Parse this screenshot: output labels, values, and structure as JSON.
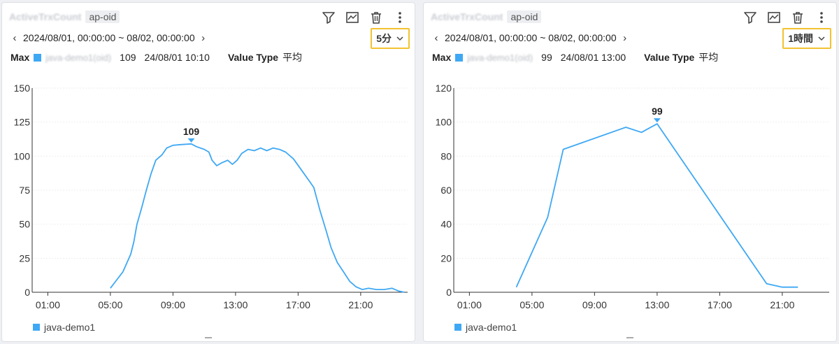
{
  "panels": [
    {
      "title": "ActiveTrxCount",
      "chip": "ap-oid",
      "range": "2024/08/01, 00:00:00 ~ 08/02, 00:00:00",
      "interval": "5分",
      "max_label": "Max",
      "series_name_blurred": "java-demo1(oid)",
      "max_value": "109",
      "max_time": "24/08/01 10:10",
      "value_type_label": "Value Type",
      "value_type": "平均",
      "legend": "java-demo1",
      "chart_data": {
        "type": "line",
        "x_ticks": [
          "01:00",
          "05:00",
          "09:00",
          "13:00",
          "17:00",
          "21:00"
        ],
        "y_ticks": [
          "0",
          "25",
          "50",
          "75",
          "100",
          "125",
          "150"
        ],
        "ylim": [
          0,
          150
        ],
        "xlim_hours": [
          0,
          24
        ],
        "peak_label": "109",
        "peak": [
          10.17,
          109
        ],
        "series": [
          {
            "name": "java-demo1",
            "points": [
              [
                5.0,
                3
              ],
              [
                5.4,
                9
              ],
              [
                5.8,
                15
              ],
              [
                6.3,
                28
              ],
              [
                6.5,
                37
              ],
              [
                6.7,
                50
              ],
              [
                7.0,
                62
              ],
              [
                7.3,
                75
              ],
              [
                7.6,
                87
              ],
              [
                7.9,
                97
              ],
              [
                8.3,
                101
              ],
              [
                8.6,
                106
              ],
              [
                9.0,
                108
              ],
              [
                9.5,
                108.5
              ],
              [
                10.17,
                109
              ],
              [
                10.5,
                107
              ],
              [
                11.0,
                105
              ],
              [
                11.3,
                103
              ],
              [
                11.5,
                97
              ],
              [
                11.8,
                93
              ],
              [
                12.1,
                95
              ],
              [
                12.5,
                97
              ],
              [
                12.8,
                94
              ],
              [
                13.1,
                97
              ],
              [
                13.4,
                102
              ],
              [
                13.8,
                105
              ],
              [
                14.2,
                104
              ],
              [
                14.6,
                106
              ],
              [
                15.0,
                104
              ],
              [
                15.4,
                106
              ],
              [
                15.8,
                105
              ],
              [
                16.2,
                103
              ],
              [
                16.7,
                98
              ],
              [
                17.2,
                90
              ],
              [
                17.7,
                82
              ],
              [
                18.0,
                77
              ],
              [
                18.4,
                60
              ],
              [
                18.8,
                45
              ],
              [
                19.1,
                33
              ],
              [
                19.5,
                22
              ],
              [
                19.9,
                15
              ],
              [
                20.3,
                8
              ],
              [
                20.7,
                4
              ],
              [
                21.1,
                2
              ],
              [
                21.5,
                3
              ],
              [
                22.0,
                2
              ],
              [
                22.5,
                2
              ],
              [
                23.0,
                3
              ],
              [
                23.4,
                1
              ],
              [
                23.8,
                0
              ]
            ]
          }
        ]
      }
    },
    {
      "title": "ActiveTrxCount",
      "chip": "ap-oid",
      "range": "2024/08/01, 00:00:00 ~ 08/02, 00:00:00",
      "interval": "1時間",
      "max_label": "Max",
      "series_name_blurred": "java-demo1(oid)",
      "max_value": "99",
      "max_time": "24/08/01 13:00",
      "value_type_label": "Value Type",
      "value_type": "平均",
      "legend": "java-demo1",
      "chart_data": {
        "type": "line",
        "x_ticks": [
          "01:00",
          "05:00",
          "09:00",
          "13:00",
          "17:00",
          "21:00"
        ],
        "y_ticks": [
          "0",
          "20",
          "40",
          "60",
          "80",
          "100",
          "120"
        ],
        "ylim": [
          0,
          120
        ],
        "xlim_hours": [
          0,
          24
        ],
        "peak_label": "99",
        "peak": [
          13,
          99
        ],
        "series": [
          {
            "name": "java-demo1",
            "points": [
              [
                4,
                3
              ],
              [
                6,
                44
              ],
              [
                7,
                84
              ],
              [
                11,
                97
              ],
              [
                12,
                94
              ],
              [
                13,
                99
              ],
              [
                20,
                5
              ],
              [
                21,
                3
              ],
              [
                22,
                3
              ]
            ]
          }
        ]
      }
    }
  ],
  "colors": {
    "series": "#3ea8f4",
    "highlight_border": "#f2c230"
  },
  "icons": [
    "filter-icon",
    "chart-icon",
    "trash-icon",
    "more-vertical-icon",
    "chevron-left-icon",
    "chevron-right-icon",
    "chevron-down-icon"
  ]
}
